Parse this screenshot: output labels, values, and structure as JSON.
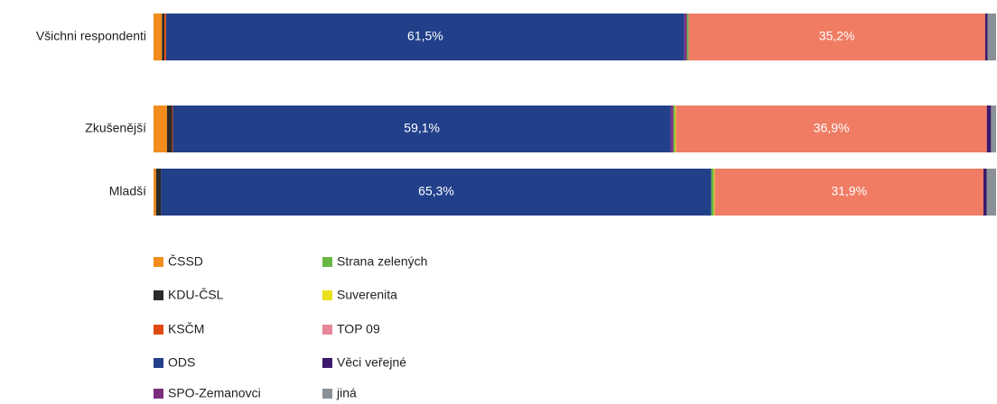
{
  "chart_data": {
    "type": "stacked_bar_horizontal",
    "categories": [
      "Všichni respondenti",
      "Zkušenější",
      "Mladší"
    ],
    "xlim": [
      0,
      100
    ],
    "series": [
      {
        "name": "ČSSD",
        "color": "#f28c1c",
        "values": [
          1.0,
          1.6,
          0.3
        ]
      },
      {
        "name": "KDU-ČSL",
        "color": "#2b2b2b",
        "values": [
          0.3,
          0.6,
          0.6
        ]
      },
      {
        "name": "KSČM",
        "color": "#e04a12",
        "values": [
          0.2,
          0.1,
          0
        ]
      },
      {
        "name": "ODS",
        "color": "#22408a",
        "values": [
          61.5,
          59.1,
          65.3
        ],
        "value_labels": [
          "61,5%",
          "59,1%",
          "65,3%"
        ]
      },
      {
        "name": "SPO-Zemanovci",
        "color": "#7b2d7e",
        "values": [
          0.3,
          0.3,
          0
        ]
      },
      {
        "name": "Strana zelených",
        "color": "#6ab644",
        "values": [
          0.2,
          0.2,
          0.3
        ]
      },
      {
        "name": "Suverenita",
        "color": "#e8e01a",
        "values": [
          0,
          0.1,
          0.1
        ]
      },
      {
        "name": "TOP 09",
        "color": "#ef7c63",
        "values": [
          35.2,
          36.9,
          31.9
        ],
        "value_labels": [
          "35,2%",
          "36,9%",
          "31,9%"
        ]
      },
      {
        "name": "Věci veřejné",
        "color": "#3b1a6b",
        "values": [
          0.3,
          0.5,
          0.4
        ]
      },
      {
        "name": "jiná",
        "color": "#8a9196",
        "values": [
          1.0,
          0.6,
          1.1
        ]
      }
    ]
  }
}
